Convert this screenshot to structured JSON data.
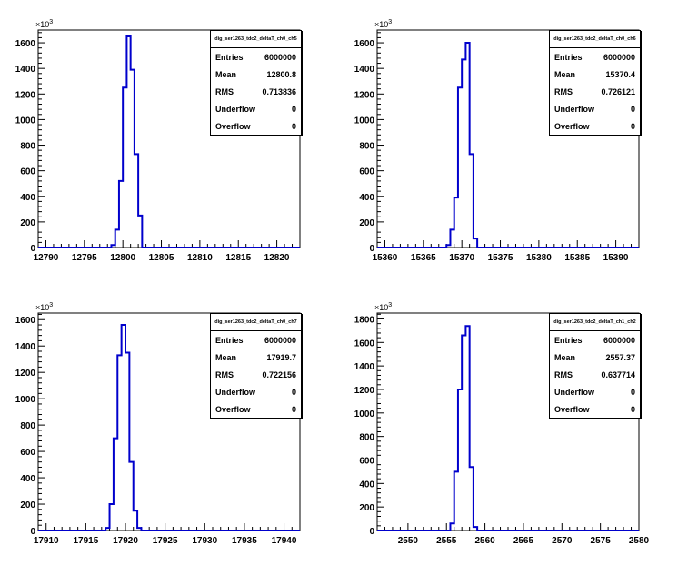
{
  "axis_multiplier": "×10",
  "axis_multiplier_exp": "3",
  "stats_labels": [
    "Entries",
    "Mean",
    "RMS",
    "Underflow",
    "Overflow"
  ],
  "panels": [
    {
      "stats": {
        "title": "dig_ser1263_tdc2_deltaT_ch0_ch5",
        "entries": "6000000",
        "mean": "12800.8",
        "rms": "0.713836",
        "underflow": "0",
        "overflow": "0"
      },
      "xticks": [
        "12790",
        "12795",
        "12800",
        "12805",
        "12810",
        "12815",
        "12820"
      ],
      "yticks": [
        "0",
        "200",
        "400",
        "600",
        "800",
        "1000",
        "1200",
        "1400",
        "1600"
      ]
    },
    {
      "stats": {
        "title": "dig_ser1263_tdc2_deltaT_ch0_ch6",
        "entries": "6000000",
        "mean": "15370.4",
        "rms": "0.726121",
        "underflow": "0",
        "overflow": "0"
      },
      "xticks": [
        "15360",
        "15365",
        "15370",
        "15375",
        "15380",
        "15385",
        "15390"
      ],
      "yticks": [
        "0",
        "200",
        "400",
        "600",
        "800",
        "1000",
        "1200",
        "1400",
        "1600"
      ]
    },
    {
      "stats": {
        "title": "dig_ser1263_tdc2_deltaT_ch0_ch7",
        "entries": "6000000",
        "mean": "17919.7",
        "rms": "0.722156",
        "underflow": "0",
        "overflow": "0"
      },
      "xticks": [
        "17910",
        "17915",
        "17920",
        "17925",
        "17930",
        "17935",
        "17940"
      ],
      "yticks": [
        "0",
        "200",
        "400",
        "600",
        "800",
        "1000",
        "1200",
        "1400",
        "1600"
      ]
    },
    {
      "stats": {
        "title": "dig_ser1263_tdc2_deltaT_ch1_ch2",
        "entries": "6000000",
        "mean": "2557.37",
        "rms": "0.637714",
        "underflow": "0",
        "overflow": "0"
      },
      "xticks": [
        "2550",
        "2555",
        "2560",
        "2565",
        "2570",
        "2575",
        "2580"
      ],
      "yticks": [
        "0",
        "200",
        "400",
        "600",
        "800",
        "1000",
        "1200",
        "1400",
        "1600",
        "1800"
      ]
    }
  ],
  "chart_data": [
    {
      "type": "bar",
      "title": "dig_ser1263_tdc2_deltaT_ch0_ch5",
      "xlabel": "",
      "ylabel": "",
      "xlim": [
        12789,
        12823
      ],
      "ylim": [
        0,
        1700
      ],
      "y_unit_multiplier": 1000,
      "bin_width": 0.5,
      "bin_low_edges": [
        12798.5,
        12799.0,
        12799.5,
        12800.0,
        12800.5,
        12801.0,
        12801.5,
        12802.0
      ],
      "values": [
        20,
        140,
        520,
        1250,
        1650,
        1390,
        730,
        250
      ],
      "color": "#0000cc"
    },
    {
      "type": "bar",
      "title": "dig_ser1263_tdc2_deltaT_ch0_ch6",
      "xlabel": "",
      "ylabel": "",
      "xlim": [
        15359,
        15393
      ],
      "ylim": [
        0,
        1700
      ],
      "y_unit_multiplier": 1000,
      "bin_width": 0.5,
      "bin_low_edges": [
        15368.0,
        15368.5,
        15369.0,
        15369.5,
        15370.0,
        15370.5,
        15371.0,
        15371.5
      ],
      "values": [
        20,
        140,
        390,
        1250,
        1470,
        1600,
        730,
        70
      ],
      "color": "#0000cc"
    },
    {
      "type": "bar",
      "title": "dig_ser1263_tdc2_deltaT_ch0_ch7",
      "xlabel": "",
      "ylabel": "",
      "xlim": [
        17909,
        17942
      ],
      "ylim": [
        0,
        1650
      ],
      "y_unit_multiplier": 1000,
      "bin_width": 0.5,
      "bin_low_edges": [
        17917.5,
        17918.0,
        17918.5,
        17919.0,
        17919.5,
        17920.0,
        17920.5,
        17921.0,
        17921.5
      ],
      "values": [
        20,
        200,
        700,
        1330,
        1560,
        1350,
        520,
        150,
        20
      ],
      "color": "#0000cc"
    },
    {
      "type": "bar",
      "title": "dig_ser1263_tdc2_deltaT_ch1_ch2",
      "xlabel": "",
      "ylabel": "",
      "xlim": [
        2546,
        2580
      ],
      "ylim": [
        0,
        1850
      ],
      "y_unit_multiplier": 1000,
      "bin_width": 0.5,
      "bin_low_edges": [
        2555.5,
        2556.0,
        2556.5,
        2557.0,
        2557.5,
        2558.0,
        2558.5
      ],
      "values": [
        60,
        500,
        1200,
        1660,
        1740,
        540,
        30
      ],
      "color": "#0000cc"
    }
  ]
}
